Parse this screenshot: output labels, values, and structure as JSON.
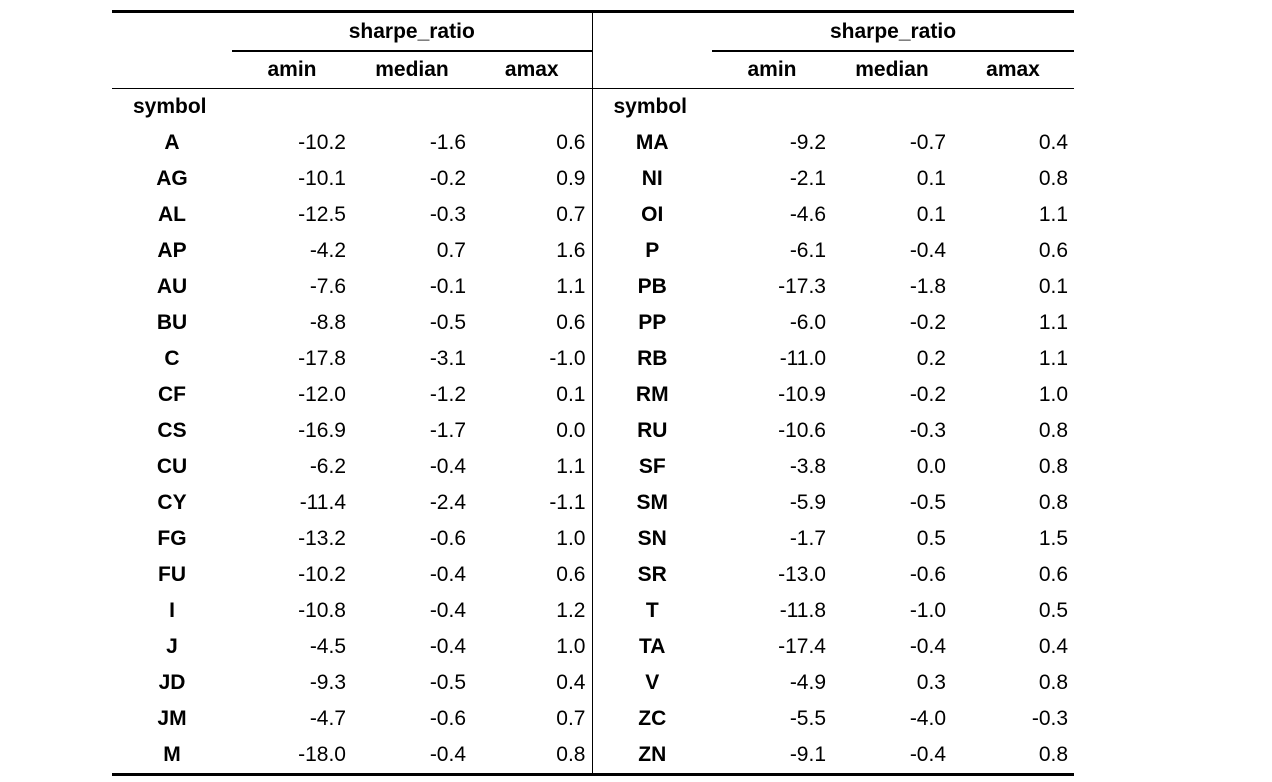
{
  "table": {
    "group_header": "sharpe_ratio",
    "columns": [
      "amin",
      "median",
      "amax"
    ],
    "index_label": "symbol",
    "left_rows": [
      {
        "symbol": "A",
        "amin": "-10.2",
        "median": "-1.6",
        "amax": "0.6"
      },
      {
        "symbol": "AG",
        "amin": "-10.1",
        "median": "-0.2",
        "amax": "0.9"
      },
      {
        "symbol": "AL",
        "amin": "-12.5",
        "median": "-0.3",
        "amax": "0.7"
      },
      {
        "symbol": "AP",
        "amin": "-4.2",
        "median": "0.7",
        "amax": "1.6"
      },
      {
        "symbol": "AU",
        "amin": "-7.6",
        "median": "-0.1",
        "amax": "1.1"
      },
      {
        "symbol": "BU",
        "amin": "-8.8",
        "median": "-0.5",
        "amax": "0.6"
      },
      {
        "symbol": "C",
        "amin": "-17.8",
        "median": "-3.1",
        "amax": "-1.0"
      },
      {
        "symbol": "CF",
        "amin": "-12.0",
        "median": "-1.2",
        "amax": "0.1"
      },
      {
        "symbol": "CS",
        "amin": "-16.9",
        "median": "-1.7",
        "amax": "0.0"
      },
      {
        "symbol": "CU",
        "amin": "-6.2",
        "median": "-0.4",
        "amax": "1.1"
      },
      {
        "symbol": "CY",
        "amin": "-11.4",
        "median": "-2.4",
        "amax": "-1.1"
      },
      {
        "symbol": "FG",
        "amin": "-13.2",
        "median": "-0.6",
        "amax": "1.0"
      },
      {
        "symbol": "FU",
        "amin": "-10.2",
        "median": "-0.4",
        "amax": "0.6"
      },
      {
        "symbol": "I",
        "amin": "-10.8",
        "median": "-0.4",
        "amax": "1.2"
      },
      {
        "symbol": "J",
        "amin": "-4.5",
        "median": "-0.4",
        "amax": "1.0"
      },
      {
        "symbol": "JD",
        "amin": "-9.3",
        "median": "-0.5",
        "amax": "0.4"
      },
      {
        "symbol": "JM",
        "amin": "-4.7",
        "median": "-0.6",
        "amax": "0.7"
      },
      {
        "symbol": "M",
        "amin": "-18.0",
        "median": "-0.4",
        "amax": "0.8"
      }
    ],
    "right_rows": [
      {
        "symbol": "MA",
        "amin": "-9.2",
        "median": "-0.7",
        "amax": "0.4"
      },
      {
        "symbol": "NI",
        "amin": "-2.1",
        "median": "0.1",
        "amax": "0.8"
      },
      {
        "symbol": "OI",
        "amin": "-4.6",
        "median": "0.1",
        "amax": "1.1"
      },
      {
        "symbol": "P",
        "amin": "-6.1",
        "median": "-0.4",
        "amax": "0.6"
      },
      {
        "symbol": "PB",
        "amin": "-17.3",
        "median": "-1.8",
        "amax": "0.1"
      },
      {
        "symbol": "PP",
        "amin": "-6.0",
        "median": "-0.2",
        "amax": "1.1"
      },
      {
        "symbol": "RB",
        "amin": "-11.0",
        "median": "0.2",
        "amax": "1.1"
      },
      {
        "symbol": "RM",
        "amin": "-10.9",
        "median": "-0.2",
        "amax": "1.0"
      },
      {
        "symbol": "RU",
        "amin": "-10.6",
        "median": "-0.3",
        "amax": "0.8"
      },
      {
        "symbol": "SF",
        "amin": "-3.8",
        "median": "0.0",
        "amax": "0.8"
      },
      {
        "symbol": "SM",
        "amin": "-5.9",
        "median": "-0.5",
        "amax": "0.8"
      },
      {
        "symbol": "SN",
        "amin": "-1.7",
        "median": "0.5",
        "amax": "1.5"
      },
      {
        "symbol": "SR",
        "amin": "-13.0",
        "median": "-0.6",
        "amax": "0.6"
      },
      {
        "symbol": "T",
        "amin": "-11.8",
        "median": "-1.0",
        "amax": "0.5"
      },
      {
        "symbol": "TA",
        "amin": "-17.4",
        "median": "-0.4",
        "amax": "0.4"
      },
      {
        "symbol": "V",
        "amin": "-4.9",
        "median": "0.3",
        "amax": "0.8"
      },
      {
        "symbol": "ZC",
        "amin": "-5.5",
        "median": "-4.0",
        "amax": "-0.3"
      },
      {
        "symbol": "ZN",
        "amin": "-9.1",
        "median": "-0.4",
        "amax": "0.8"
      }
    ]
  }
}
